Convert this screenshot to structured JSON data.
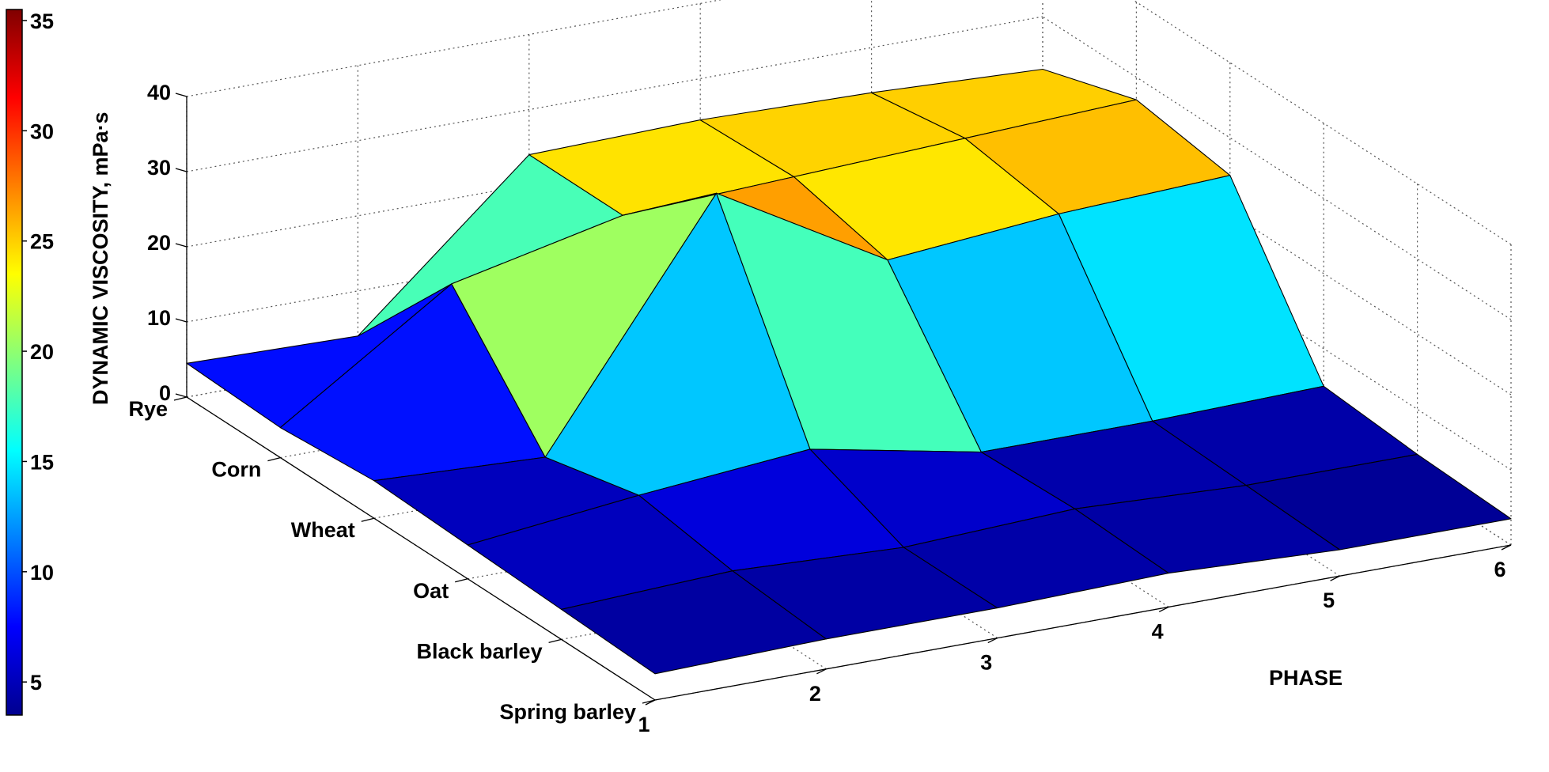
{
  "chart_data": {
    "type": "surface3d",
    "title": "",
    "xlabel": "PHASE",
    "ylabel": "",
    "zlabel": "DYNAMIC VISCOSITY, mPa·s",
    "x": [
      1,
      2,
      3,
      4,
      5,
      6
    ],
    "x_tick_labels": [
      "1",
      "2",
      "3",
      "4",
      "5",
      "6"
    ],
    "categories": [
      "Spring barley",
      "Black barley",
      "Oat",
      "Wheat",
      "Corn",
      "Rye"
    ],
    "z_ticks": [
      0,
      10,
      20,
      30,
      40
    ],
    "zlim": [
      0,
      40
    ],
    "colorbar": {
      "range": [
        3.5,
        35.5
      ],
      "ticks": [
        5,
        10,
        15,
        20,
        25,
        30,
        35
      ],
      "colormap": "jet"
    },
    "grid": true,
    "series": [
      {
        "name": "Spring barley",
        "values": [
          3.5,
          4,
          4,
          4.5,
          3.5,
          3.5
        ]
      },
      {
        "name": "Black barley",
        "values": [
          4,
          5,
          4,
          5,
          4,
          4
        ]
      },
      {
        "name": "Oat",
        "values": [
          4.5,
          7,
          9,
          4.5,
          4.5,
          5
        ]
      },
      {
        "name": "Wheat",
        "values": [
          5,
          4,
          35,
          22,
          24,
          25
        ]
      },
      {
        "name": "Corn",
        "values": [
          4,
          19,
          24,
          25,
          26,
          27
        ]
      },
      {
        "name": "Rye",
        "values": [
          4.5,
          4,
          24,
          24.5,
          24,
          23
        ]
      }
    ]
  }
}
